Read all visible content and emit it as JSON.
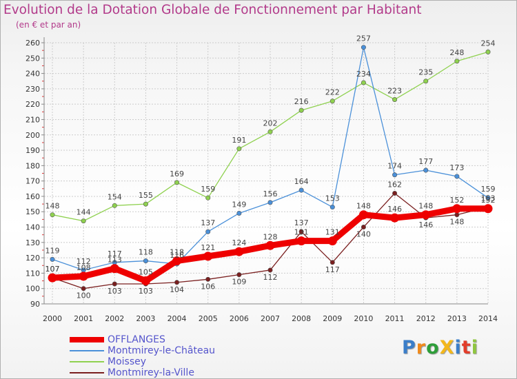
{
  "title": "Evolution de la Dotation Globale de Fonctionnement par Habitant",
  "subtitle": "(en € et par an)",
  "logo": {
    "text": "ProXiti",
    "letter_colors": [
      "#3b7ec9",
      "#f08a1c",
      "#2e9e3a",
      "#f3b71b",
      "#3b7ec9",
      "#e23d2a",
      "#8fc63f"
    ]
  },
  "colors": {
    "title": "#b23a8a",
    "legend_text": "#5555cc",
    "grid": "#cccccc",
    "axis": "#888888"
  },
  "chart_data": {
    "type": "line",
    "title": "Evolution de la Dotation Globale de Fonctionnement par Habitant",
    "subtitle": "(en € et par an)",
    "x": [
      "2000",
      "2001",
      "2002",
      "2003",
      "2004",
      "2005",
      "2006",
      "2007",
      "2008",
      "2009",
      "2010",
      "2011",
      "2012",
      "2013",
      "2014"
    ],
    "ylim": [
      90,
      260
    ],
    "yticks": [
      90,
      100,
      110,
      120,
      130,
      140,
      150,
      160,
      170,
      180,
      190,
      200,
      210,
      220,
      230,
      240,
      250,
      260
    ],
    "grid": true,
    "legend_position": "bottom-left",
    "series": [
      {
        "name": "OFFLANGES",
        "color": "#ee0000",
        "values": [
          107,
          108,
          113,
          105,
          118,
          121,
          124,
          128,
          131,
          131,
          148,
          146,
          148,
          152,
          152
        ]
      },
      {
        "name": "Montmirey-le-Château",
        "color": "#4a90d9",
        "values": [
          119,
          112,
          117,
          118,
          116,
          137,
          149,
          156,
          164,
          153,
          257,
          174,
          177,
          173,
          159
        ]
      },
      {
        "name": "Moissey",
        "color": "#8fd14f",
        "values": [
          148,
          144,
          154,
          155,
          169,
          159,
          191,
          202,
          216,
          222,
          234,
          223,
          235,
          248,
          254
        ]
      },
      {
        "name": "Montmirey-la-Ville",
        "color": "#7a1f1f",
        "values": [
          107,
          100,
          103,
          103,
          104,
          106,
          109,
          112,
          137,
          117,
          140,
          162,
          146,
          148,
          153
        ]
      }
    ],
    "point_labels": [
      [
        "107",
        "108",
        "113",
        "105",
        "118",
        "121",
        "124",
        "128",
        "131",
        "131",
        "148",
        "146",
        "148",
        "152",
        "152"
      ],
      [
        "119",
        "112",
        "117",
        "118",
        "116",
        "137",
        "149",
        "156",
        "164",
        "153",
        "257",
        "174",
        "177",
        "173",
        "159"
      ],
      [
        "148",
        "144",
        "154",
        "155",
        "169",
        "159",
        "191",
        "202",
        "216",
        "222",
        "234",
        "223",
        "235",
        "248",
        "254"
      ],
      [
        "107",
        "100",
        "103",
        "103",
        "104",
        "106",
        "109",
        "112",
        "137",
        "117",
        "140",
        "162",
        "146",
        "148",
        "153"
      ]
    ]
  }
}
